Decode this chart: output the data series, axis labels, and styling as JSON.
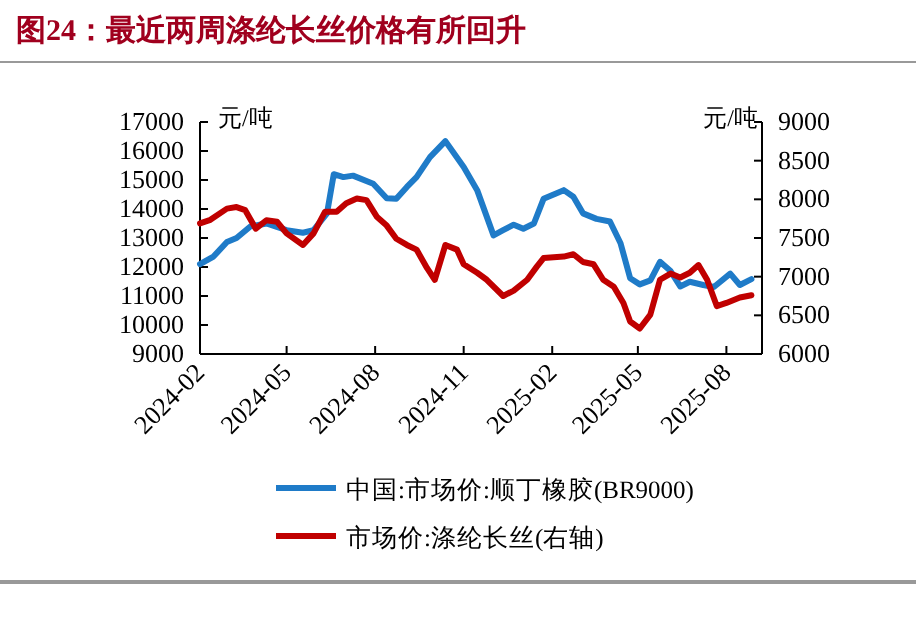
{
  "chart_data": {
    "type": "line",
    "title": "图24：最近两周涤纶长丝价格有所回升",
    "ylabel": "元/吨",
    "y2label": "元/吨",
    "legend": "bottom",
    "grid": false,
    "line_style": "solid",
    "xlim": [
      "2024-02-01",
      "2025-09-07"
    ],
    "xticks": [
      {
        "value": "2024-02-01",
        "label": "2024-02"
      },
      {
        "value": "2024-05-01",
        "label": "2024-05"
      },
      {
        "value": "2024-08-01",
        "label": "2024-08"
      },
      {
        "value": "2024-11-01",
        "label": "2024-11"
      },
      {
        "value": "2025-02-01",
        "label": "2025-02"
      },
      {
        "value": "2025-05-01",
        "label": "2025-05"
      },
      {
        "value": "2025-08-01",
        "label": "2025-08"
      }
    ],
    "ylim": [
      9000,
      17000
    ],
    "yticks": [
      9000,
      10000,
      11000,
      12000,
      13000,
      14000,
      15000,
      16000,
      17000
    ],
    "y2lim": [
      6000,
      9000
    ],
    "y2ticks": [
      6000,
      6500,
      7000,
      7500,
      8000,
      8500,
      9000
    ],
    "series": [
      {
        "name": "中国:市场价:顺丁橡胶(BR9000)",
        "color": "#1f7bc8",
        "x": [
          "2024-02-01",
          "2024-02-15",
          "2024-02-29",
          "2024-03-10",
          "2024-03-24",
          "2024-04-10",
          "2024-05-01",
          "2024-05-18",
          "2024-05-29",
          "2024-06-12",
          "2024-06-19",
          "2024-06-29",
          "2024-07-09",
          "2024-07-30",
          "2024-08-13",
          "2024-08-23",
          "2024-09-03",
          "2024-09-13",
          "2024-09-27",
          "2024-10-13",
          "2024-11-01",
          "2024-11-15",
          "2024-12-02",
          "2024-12-12",
          "2024-12-23",
          "2025-01-02",
          "2025-01-13",
          "2025-01-23",
          "2025-02-13",
          "2025-02-23",
          "2025-03-05",
          "2025-03-19",
          "2025-04-02",
          "2025-04-13",
          "2025-04-23",
          "2025-05-03",
          "2025-05-14",
          "2025-05-24",
          "2025-06-04",
          "2025-06-14",
          "2025-06-24",
          "2025-07-08",
          "2025-07-19",
          "2025-08-05",
          "2025-08-15",
          "2025-08-27"
        ],
        "values": [
          12100,
          12360,
          12860,
          13000,
          13390,
          13500,
          13270,
          13180,
          13270,
          13850,
          15200,
          15100,
          15150,
          14870,
          14370,
          14350,
          14760,
          15100,
          15790,
          16340,
          15450,
          14650,
          13090,
          13270,
          13460,
          13320,
          13500,
          14350,
          14650,
          14420,
          13850,
          13660,
          13570,
          12820,
          11610,
          11400,
          11540,
          12180,
          11860,
          11330,
          11490,
          11380,
          11310,
          11770,
          11380,
          11580
        ]
      },
      {
        "name": "市场价:涤纶长丝(右轴)",
        "color": "#c00000",
        "axis": "y2",
        "x": [
          "2024-02-01",
          "2024-02-11",
          "2024-02-29",
          "2024-03-10",
          "2024-03-19",
          "2024-03-30",
          "2024-04-10",
          "2024-04-21",
          "2024-05-01",
          "2024-05-18",
          "2024-05-29",
          "2024-06-10",
          "2024-06-22",
          "2024-07-02",
          "2024-07-13",
          "2024-07-23",
          "2024-08-03",
          "2024-08-13",
          "2024-08-23",
          "2024-09-03",
          "2024-09-13",
          "2024-09-24",
          "2024-10-02",
          "2024-10-13",
          "2024-10-25",
          "2024-11-01",
          "2024-11-15",
          "2024-11-25",
          "2024-12-12",
          "2024-12-23",
          "2025-01-06",
          "2025-01-16",
          "2025-01-23",
          "2025-02-13",
          "2025-02-23",
          "2025-03-05",
          "2025-03-16",
          "2025-03-26",
          "2025-04-06",
          "2025-04-16",
          "2025-04-23",
          "2025-05-03",
          "2025-05-14",
          "2025-05-24",
          "2025-06-04",
          "2025-06-14",
          "2025-06-24",
          "2025-07-03",
          "2025-07-12",
          "2025-07-22",
          "2025-08-01",
          "2025-08-15",
          "2025-08-27"
        ],
        "values": [
          7690,
          7730,
          7880,
          7900,
          7860,
          7620,
          7730,
          7710,
          7560,
          7410,
          7560,
          7840,
          7840,
          7950,
          8010,
          7990,
          7770,
          7660,
          7490,
          7410,
          7350,
          7110,
          6960,
          7410,
          7350,
          7160,
          7050,
          6960,
          6750,
          6820,
          6960,
          7130,
          7240,
          7260,
          7290,
          7190,
          7160,
          6960,
          6870,
          6660,
          6420,
          6330,
          6510,
          6960,
          7040,
          6990,
          7050,
          7150,
          6960,
          6620,
          6660,
          6730,
          6760
        ]
      }
    ]
  }
}
